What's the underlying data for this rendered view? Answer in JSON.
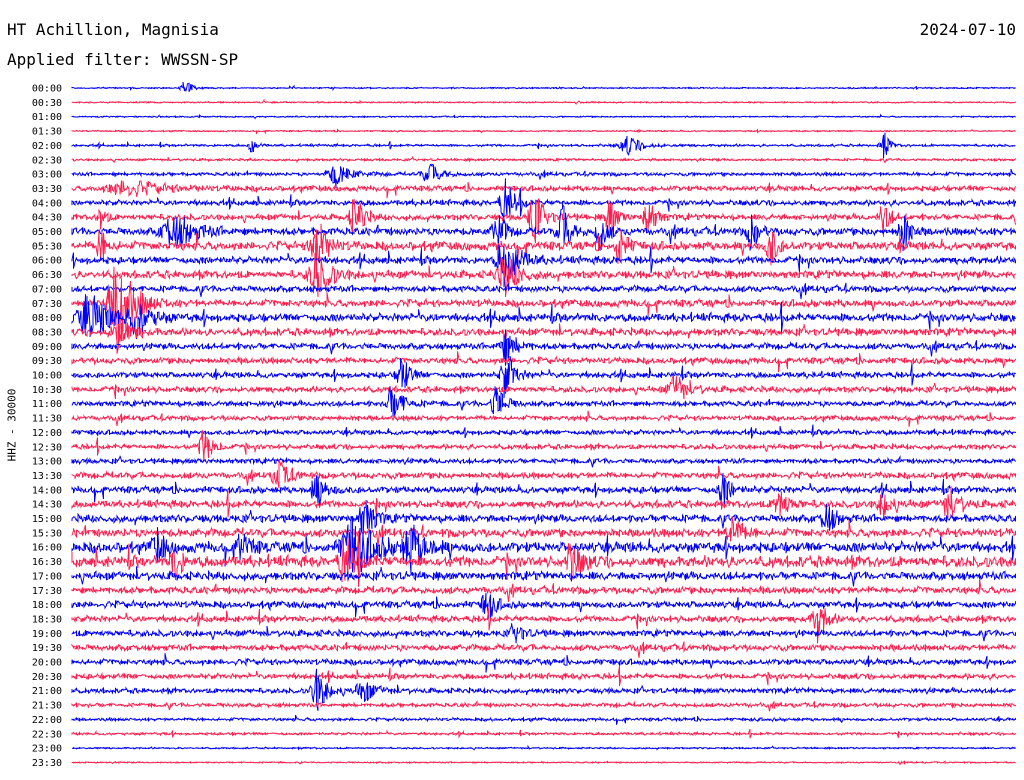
{
  "header": {
    "station": "HT Achillion, Magnisia",
    "date": "2024-07-10",
    "filter": "Applied filter: WWSSN-SP"
  },
  "chart_data": {
    "type": "line",
    "subtype": "helicorder",
    "channel_label": "HHZ - 30000",
    "row_labels": [
      "00:00",
      "00:30",
      "01:00",
      "01:30",
      "02:00",
      "02:30",
      "03:00",
      "03:30",
      "04:00",
      "04:30",
      "05:00",
      "05:30",
      "06:00",
      "06:30",
      "07:00",
      "07:30",
      "08:00",
      "08:30",
      "09:00",
      "09:30",
      "10:00",
      "10:30",
      "11:00",
      "11:30",
      "12:00",
      "12:30",
      "13:00",
      "13:30",
      "14:00",
      "14:30",
      "15:00",
      "15:30",
      "16:00",
      "16:30",
      "17:00",
      "17:30",
      "18:00",
      "18:30",
      "19:00",
      "19:30",
      "20:00",
      "20:30",
      "21:00",
      "21:30",
      "22:00",
      "22:30",
      "23:00",
      "23:30"
    ],
    "trace_colors": [
      "#0000ff",
      "#ff2050"
    ],
    "row_noise": [
      0.5,
      0.5,
      0.5,
      0.5,
      0.9,
      0.9,
      1.4,
      2.2,
      2.2,
      2.4,
      3.2,
      3.6,
      3.0,
      3.2,
      2.6,
      3.0,
      3.4,
      3.0,
      2.6,
      2.6,
      2.4,
      2.4,
      2.2,
      2.0,
      2.0,
      2.0,
      2.0,
      2.6,
      2.8,
      3.0,
      3.2,
      3.6,
      4.4,
      4.6,
      3.4,
      3.0,
      2.8,
      2.6,
      2.6,
      2.6,
      2.4,
      2.2,
      2.0,
      1.6,
      1.2,
      1.0,
      0.6,
      0.5
    ],
    "events": [
      {
        "row": 0,
        "x": 0.12,
        "amp": 8,
        "width": 0.01
      },
      {
        "row": 4,
        "x": 0.19,
        "amp": 12,
        "width": 0.006
      },
      {
        "row": 4,
        "x": 0.59,
        "amp": 10,
        "width": 0.02
      },
      {
        "row": 4,
        "x": 0.86,
        "amp": 16,
        "width": 0.008
      },
      {
        "row": 6,
        "x": 0.28,
        "amp": 14,
        "width": 0.02
      },
      {
        "row": 6,
        "x": 0.38,
        "amp": 10,
        "width": 0.02
      },
      {
        "row": 7,
        "x": 0.06,
        "amp": 8,
        "width": 0.05
      },
      {
        "row": 8,
        "x": 0.46,
        "amp": 22,
        "width": 0.015
      },
      {
        "row": 9,
        "x": 0.03,
        "amp": 20,
        "width": 0.006
      },
      {
        "row": 9,
        "x": 0.3,
        "amp": 24,
        "width": 0.012
      },
      {
        "row": 9,
        "x": 0.49,
        "amp": 28,
        "width": 0.014
      },
      {
        "row": 9,
        "x": 0.57,
        "amp": 22,
        "width": 0.01
      },
      {
        "row": 9,
        "x": 0.61,
        "amp": 26,
        "width": 0.01
      },
      {
        "row": 9,
        "x": 0.86,
        "amp": 20,
        "width": 0.01
      },
      {
        "row": 10,
        "x": 0.11,
        "amp": 18,
        "width": 0.03
      },
      {
        "row": 10,
        "x": 0.45,
        "amp": 28,
        "width": 0.01
      },
      {
        "row": 10,
        "x": 0.52,
        "amp": 26,
        "width": 0.012
      },
      {
        "row": 10,
        "x": 0.56,
        "amp": 22,
        "width": 0.01
      },
      {
        "row": 10,
        "x": 0.72,
        "amp": 22,
        "width": 0.01
      },
      {
        "row": 10,
        "x": 0.88,
        "amp": 24,
        "width": 0.01
      },
      {
        "row": 11,
        "x": 0.03,
        "amp": 18,
        "width": 0.01
      },
      {
        "row": 11,
        "x": 0.26,
        "amp": 28,
        "width": 0.014
      },
      {
        "row": 11,
        "x": 0.58,
        "amp": 22,
        "width": 0.01
      },
      {
        "row": 11,
        "x": 0.74,
        "amp": 20,
        "width": 0.01
      },
      {
        "row": 12,
        "x": 0.46,
        "amp": 28,
        "width": 0.02
      },
      {
        "row": 13,
        "x": 0.46,
        "amp": 20,
        "width": 0.02
      },
      {
        "row": 13,
        "x": 0.26,
        "amp": 22,
        "width": 0.02
      },
      {
        "row": 15,
        "x": 0.05,
        "amp": 24,
        "width": 0.02
      },
      {
        "row": 15,
        "x": 0.05,
        "amp": 28,
        "width": 0.025
      },
      {
        "row": 16,
        "x": 0.02,
        "amp": 22,
        "width": 0.03
      },
      {
        "row": 16,
        "x": 0.07,
        "amp": 18,
        "width": 0.02
      },
      {
        "row": 17,
        "x": 0.05,
        "amp": 14,
        "width": 0.02
      },
      {
        "row": 18,
        "x": 0.46,
        "amp": 18,
        "width": 0.015
      },
      {
        "row": 20,
        "x": 0.35,
        "amp": 20,
        "width": 0.012
      },
      {
        "row": 20,
        "x": 0.46,
        "amp": 28,
        "width": 0.012
      },
      {
        "row": 21,
        "x": 0.64,
        "amp": 14,
        "width": 0.02
      },
      {
        "row": 22,
        "x": 0.34,
        "amp": 20,
        "width": 0.015
      },
      {
        "row": 22,
        "x": 0.45,
        "amp": 22,
        "width": 0.012
      },
      {
        "row": 25,
        "x": 0.14,
        "amp": 18,
        "width": 0.012
      },
      {
        "row": 27,
        "x": 0.22,
        "amp": 16,
        "width": 0.015
      },
      {
        "row": 28,
        "x": 0.26,
        "amp": 16,
        "width": 0.015
      },
      {
        "row": 28,
        "x": 0.69,
        "amp": 16,
        "width": 0.012
      },
      {
        "row": 29,
        "x": 0.75,
        "amp": 16,
        "width": 0.015
      },
      {
        "row": 29,
        "x": 0.86,
        "amp": 14,
        "width": 0.012
      },
      {
        "row": 29,
        "x": 0.93,
        "amp": 18,
        "width": 0.015
      },
      {
        "row": 30,
        "x": 0.31,
        "amp": 20,
        "width": 0.015
      },
      {
        "row": 30,
        "x": 0.8,
        "amp": 18,
        "width": 0.012
      },
      {
        "row": 31,
        "x": 0.7,
        "amp": 18,
        "width": 0.015
      },
      {
        "row": 32,
        "x": 0.3,
        "amp": 30,
        "width": 0.03
      },
      {
        "row": 32,
        "x": 0.36,
        "amp": 24,
        "width": 0.02
      },
      {
        "row": 32,
        "x": 0.09,
        "amp": 18,
        "width": 0.012
      },
      {
        "row": 32,
        "x": 0.18,
        "amp": 18,
        "width": 0.012
      },
      {
        "row": 33,
        "x": 0.29,
        "amp": 24,
        "width": 0.015
      },
      {
        "row": 33,
        "x": 0.53,
        "amp": 18,
        "width": 0.015
      },
      {
        "row": 33,
        "x": 0.11,
        "amp": 16,
        "width": 0.012
      },
      {
        "row": 36,
        "x": 0.44,
        "amp": 18,
        "width": 0.012
      },
      {
        "row": 37,
        "x": 0.79,
        "amp": 24,
        "width": 0.012
      },
      {
        "row": 38,
        "x": 0.47,
        "amp": 10,
        "width": 0.012
      },
      {
        "row": 42,
        "x": 0.26,
        "amp": 22,
        "width": 0.015
      },
      {
        "row": 42,
        "x": 0.31,
        "amp": 10,
        "width": 0.02
      }
    ]
  }
}
